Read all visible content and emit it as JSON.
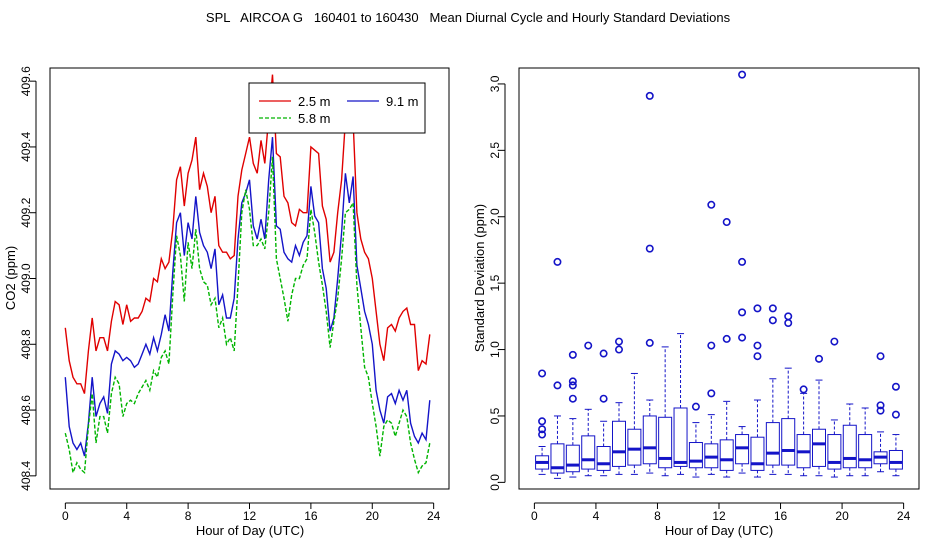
{
  "title": "SPL   AIRCOA G   160401 to 160430   Mean Diurnal Cycle and Hourly Standard Deviations",
  "chart_data": [
    {
      "type": "line",
      "xlabel": "Hour of Day (UTC)",
      "ylabel": "CO2 (ppm)",
      "xlim": [
        -1,
        25
      ],
      "ylim": [
        408.36,
        409.64
      ],
      "xticks": [
        0,
        4,
        8,
        12,
        16,
        20,
        24
      ],
      "xtick_labels": [
        "0",
        "4",
        "8",
        "12",
        "16",
        "20",
        "24"
      ],
      "yticks": [
        408.4,
        408.6,
        408.8,
        409.0,
        409.2,
        409.4,
        409.6
      ],
      "ytick_labels": [
        "408.4",
        "408.6",
        "408.8",
        "409.0",
        "409.2",
        "409.4",
        "409.6"
      ],
      "legend": {
        "position": "top-right",
        "entries": [
          "2.5 m",
          "9.1 m",
          "5.8 m"
        ]
      },
      "series": [
        {
          "name": "2.5 m",
          "color": "#e00000",
          "dash": "",
          "x": [
            0,
            0.25,
            0.5,
            0.75,
            1,
            1.25,
            1.5,
            1.75,
            2,
            2.25,
            2.5,
            2.75,
            3,
            3.25,
            3.5,
            3.75,
            4,
            4.25,
            4.5,
            4.75,
            5,
            5.25,
            5.5,
            5.75,
            6,
            6.25,
            6.5,
            6.75,
            7,
            7.25,
            7.5,
            7.75,
            8,
            8.25,
            8.5,
            8.75,
            9,
            9.25,
            9.5,
            9.75,
            10,
            10.25,
            10.5,
            10.75,
            11,
            11.25,
            11.5,
            11.75,
            12,
            12.25,
            12.5,
            12.75,
            13,
            13.25,
            13.5,
            13.75,
            14,
            14.25,
            14.5,
            14.75,
            15,
            15.25,
            15.5,
            15.75,
            16,
            16.25,
            16.5,
            16.75,
            17,
            17.25,
            17.5,
            17.75,
            18,
            18.25,
            18.5,
            18.75,
            19,
            19.25,
            19.5,
            19.75,
            20,
            20.25,
            20.5,
            20.75,
            21,
            21.25,
            21.5,
            21.75,
            22,
            22.25,
            22.5,
            22.75,
            23,
            23.25,
            23.5,
            23.75
          ],
          "y": [
            408.85,
            408.75,
            408.7,
            408.68,
            408.68,
            408.65,
            408.78,
            408.88,
            408.78,
            408.82,
            408.82,
            408.78,
            408.87,
            408.93,
            408.92,
            408.86,
            408.92,
            408.87,
            408.88,
            408.88,
            408.9,
            408.94,
            408.93,
            409.0,
            408.99,
            409.06,
            409.03,
            409.05,
            409.15,
            409.3,
            409.34,
            409.22,
            409.32,
            409.36,
            409.43,
            409.27,
            409.32,
            409.28,
            409.2,
            409.25,
            409.1,
            409.08,
            409.08,
            409.06,
            409.07,
            409.25,
            409.33,
            409.38,
            409.43,
            409.35,
            409.32,
            409.42,
            409.35,
            409.49,
            409.62,
            409.38,
            409.37,
            409.25,
            409.23,
            409.17,
            409.16,
            409.21,
            409.2,
            409.2,
            409.4,
            409.39,
            409.38,
            409.22,
            409.18,
            409.05,
            409.08,
            409.2,
            409.3,
            409.48,
            409.5,
            409.48,
            409.2,
            409.12,
            409.08,
            409.06,
            409.0,
            408.9,
            408.8,
            408.75,
            408.85,
            408.86,
            408.84,
            408.88,
            408.9,
            408.91,
            408.86,
            408.86,
            408.72,
            408.75,
            408.74,
            408.83
          ]
        },
        {
          "name": "9.1 m",
          "color": "#1414c8",
          "dash": "",
          "x": [
            0,
            0.25,
            0.5,
            0.75,
            1,
            1.25,
            1.5,
            1.75,
            2,
            2.25,
            2.5,
            2.75,
            3,
            3.25,
            3.5,
            3.75,
            4,
            4.25,
            4.5,
            4.75,
            5,
            5.25,
            5.5,
            5.75,
            6,
            6.25,
            6.5,
            6.75,
            7,
            7.25,
            7.5,
            7.75,
            8,
            8.25,
            8.5,
            8.75,
            9,
            9.25,
            9.5,
            9.75,
            10,
            10.25,
            10.5,
            10.75,
            11,
            11.25,
            11.5,
            11.75,
            12,
            12.25,
            12.5,
            12.75,
            13,
            13.25,
            13.5,
            13.75,
            14,
            14.25,
            14.5,
            14.75,
            15,
            15.25,
            15.5,
            15.75,
            16,
            16.25,
            16.5,
            16.75,
            17,
            17.25,
            17.5,
            17.75,
            18,
            18.25,
            18.5,
            18.75,
            19,
            19.25,
            19.5,
            19.75,
            20,
            20.25,
            20.5,
            20.75,
            21,
            21.25,
            21.5,
            21.75,
            22,
            22.25,
            22.5,
            22.75,
            23,
            23.25,
            23.5,
            23.75
          ],
          "y": [
            408.7,
            408.55,
            408.5,
            408.48,
            408.5,
            408.46,
            408.56,
            408.7,
            408.58,
            408.62,
            408.64,
            408.59,
            408.74,
            408.78,
            408.77,
            408.75,
            408.76,
            408.75,
            408.73,
            408.74,
            408.77,
            408.8,
            408.77,
            408.82,
            408.78,
            408.83,
            408.89,
            408.84,
            409.02,
            409.17,
            409.2,
            409.07,
            409.17,
            409.12,
            409.25,
            409.14,
            409.1,
            409.08,
            409.03,
            409.09,
            408.92,
            408.95,
            408.88,
            408.88,
            408.94,
            409.12,
            409.23,
            409.26,
            409.3,
            409.16,
            409.12,
            409.18,
            409.12,
            409.3,
            409.43,
            409.16,
            409.15,
            409.08,
            409.06,
            409.05,
            409.1,
            409.07,
            409.11,
            409.13,
            409.28,
            409.19,
            409.17,
            409.03,
            408.97,
            408.84,
            408.88,
            409.0,
            409.14,
            409.32,
            409.23,
            409.31,
            409.04,
            408.97,
            408.9,
            408.86,
            408.8,
            408.66,
            408.6,
            408.56,
            408.64,
            408.65,
            408.62,
            408.66,
            408.63,
            408.66,
            408.56,
            408.52,
            408.5,
            408.53,
            408.51,
            408.63
          ]
        },
        {
          "name": "5.8 m",
          "color": "#00b400",
          "dash": "4,2",
          "x": [
            0,
            0.25,
            0.5,
            0.75,
            1,
            1.25,
            1.5,
            1.75,
            2,
            2.25,
            2.5,
            2.75,
            3,
            3.25,
            3.5,
            3.75,
            4,
            4.25,
            4.5,
            4.75,
            5,
            5.25,
            5.5,
            5.75,
            6,
            6.25,
            6.5,
            6.75,
            7,
            7.25,
            7.5,
            7.75,
            8,
            8.25,
            8.5,
            8.75,
            9,
            9.25,
            9.5,
            9.75,
            10,
            10.25,
            10.5,
            10.75,
            11,
            11.25,
            11.5,
            11.75,
            12,
            12.25,
            12.5,
            12.75,
            13,
            13.25,
            13.5,
            13.75,
            14,
            14.25,
            14.5,
            14.75,
            15,
            15.25,
            15.5,
            15.75,
            16,
            16.25,
            16.5,
            16.75,
            17,
            17.25,
            17.5,
            17.75,
            18,
            18.25,
            18.5,
            18.75,
            19,
            19.25,
            19.5,
            19.75,
            20,
            20.25,
            20.5,
            20.75,
            21,
            21.25,
            21.5,
            21.75,
            22,
            22.25,
            22.5,
            22.75,
            23,
            23.25,
            23.5,
            23.75
          ],
          "y": [
            408.53,
            408.48,
            408.41,
            408.44,
            408.42,
            408.41,
            408.55,
            408.65,
            408.5,
            408.58,
            408.58,
            408.53,
            408.65,
            408.7,
            408.68,
            408.58,
            408.62,
            408.63,
            408.62,
            408.65,
            408.67,
            408.69,
            408.66,
            408.72,
            408.7,
            408.76,
            408.78,
            408.74,
            408.95,
            409.13,
            409.07,
            408.93,
            409.11,
            409.03,
            409.15,
            409.03,
            408.99,
            408.98,
            408.92,
            408.94,
            408.85,
            408.88,
            408.8,
            408.82,
            408.78,
            408.98,
            409.2,
            409.27,
            409.21,
            409.1,
            409.1,
            409.12,
            409.09,
            409.2,
            409.37,
            409.06,
            409.0,
            408.94,
            408.87,
            408.95,
            409.0,
            409.0,
            409.04,
            409.06,
            409.21,
            409.14,
            409.05,
            408.98,
            408.9,
            408.79,
            408.87,
            408.94,
            409.06,
            409.2,
            409.21,
            409.23,
            408.98,
            408.85,
            408.73,
            408.7,
            408.62,
            408.55,
            408.46,
            408.55,
            408.57,
            408.56,
            408.52,
            408.56,
            408.6,
            408.58,
            408.5,
            408.45,
            408.41,
            408.43,
            408.44,
            408.5
          ]
        }
      ]
    },
    {
      "type": "box",
      "xlabel": "Hour of Day (UTC)",
      "ylabel": "Standard Deviation (ppm)",
      "xlim": [
        -1,
        25
      ],
      "ylim": [
        -0.05,
        3.12
      ],
      "xticks": [
        0,
        4,
        8,
        12,
        16,
        20,
        24
      ],
      "xtick_labels": [
        "0",
        "4",
        "8",
        "12",
        "16",
        "20",
        "24"
      ],
      "yticks": [
        0.0,
        0.5,
        1.0,
        1.5,
        2.0,
        2.5,
        3.0
      ],
      "ytick_labels": [
        "0.0",
        "0.5",
        "1.0",
        "1.5",
        "2.0",
        "2.5",
        "3.0"
      ],
      "color": "#1414c8",
      "boxes": [
        {
          "x": 0.5,
          "q1": 0.1,
          "median": 0.15,
          "q3": 0.2,
          "lo": 0.06,
          "hi": 0.27,
          "outliers": [
            0.36,
            0.4,
            0.46,
            0.82
          ]
        },
        {
          "x": 1.5,
          "q1": 0.07,
          "median": 0.11,
          "q3": 0.29,
          "lo": 0.03,
          "hi": 0.5,
          "outliers": [
            0.73,
            1.66
          ]
        },
        {
          "x": 2.5,
          "q1": 0.08,
          "median": 0.13,
          "q3": 0.28,
          "lo": 0.04,
          "hi": 0.48,
          "outliers": [
            0.63,
            0.73,
            0.76,
            0.96
          ]
        },
        {
          "x": 3.5,
          "q1": 0.1,
          "median": 0.17,
          "q3": 0.35,
          "lo": 0.05,
          "hi": 0.55,
          "outliers": [
            1.03
          ]
        },
        {
          "x": 4.5,
          "q1": 0.09,
          "median": 0.14,
          "q3": 0.27,
          "lo": 0.05,
          "hi": 0.46,
          "outliers": [
            0.63,
            0.97
          ]
        },
        {
          "x": 5.5,
          "q1": 0.12,
          "median": 0.23,
          "q3": 0.46,
          "lo": 0.06,
          "hi": 0.6,
          "outliers": [
            1.0,
            1.06
          ]
        },
        {
          "x": 6.5,
          "q1": 0.13,
          "median": 0.25,
          "q3": 0.4,
          "lo": 0.06,
          "hi": 0.82,
          "outliers": []
        },
        {
          "x": 7.5,
          "q1": 0.14,
          "median": 0.26,
          "q3": 0.5,
          "lo": 0.07,
          "hi": 0.62,
          "outliers": [
            1.05,
            1.76,
            2.91
          ]
        },
        {
          "x": 8.5,
          "q1": 0.11,
          "median": 0.18,
          "q3": 0.49,
          "lo": 0.05,
          "hi": 1.02,
          "outliers": []
        },
        {
          "x": 9.5,
          "q1": 0.12,
          "median": 0.15,
          "q3": 0.56,
          "lo": 0.06,
          "hi": 1.12,
          "outliers": []
        },
        {
          "x": 10.5,
          "q1": 0.11,
          "median": 0.16,
          "q3": 0.3,
          "lo": 0.04,
          "hi": 0.45,
          "outliers": [
            0.57
          ]
        },
        {
          "x": 11.5,
          "q1": 0.11,
          "median": 0.19,
          "q3": 0.29,
          "lo": 0.06,
          "hi": 0.51,
          "outliers": [
            0.67,
            1.03,
            2.09
          ]
        },
        {
          "x": 12.5,
          "q1": 0.09,
          "median": 0.17,
          "q3": 0.32,
          "lo": 0.04,
          "hi": 0.61,
          "outliers": [
            1.08,
            1.96
          ]
        },
        {
          "x": 13.5,
          "q1": 0.14,
          "median": 0.26,
          "q3": 0.36,
          "lo": 0.07,
          "hi": 0.42,
          "outliers": [
            1.09,
            1.28,
            1.66,
            3.07
          ]
        },
        {
          "x": 14.5,
          "q1": 0.09,
          "median": 0.14,
          "q3": 0.34,
          "lo": 0.04,
          "hi": 0.62,
          "outliers": [
            0.95,
            1.03,
            1.31
          ]
        },
        {
          "x": 15.5,
          "q1": 0.13,
          "median": 0.22,
          "q3": 0.45,
          "lo": 0.06,
          "hi": 0.78,
          "outliers": [
            1.22,
            1.31
          ]
        },
        {
          "x": 16.5,
          "q1": 0.13,
          "median": 0.24,
          "q3": 0.48,
          "lo": 0.06,
          "hi": 0.86,
          "outliers": [
            1.2,
            1.25
          ]
        },
        {
          "x": 17.5,
          "q1": 0.11,
          "median": 0.23,
          "q3": 0.36,
          "lo": 0.05,
          "hi": 0.67,
          "outliers": [
            0.7
          ]
        },
        {
          "x": 18.5,
          "q1": 0.12,
          "median": 0.29,
          "q3": 0.4,
          "lo": 0.05,
          "hi": 0.77,
          "outliers": [
            0.93
          ]
        },
        {
          "x": 19.5,
          "q1": 0.1,
          "median": 0.15,
          "q3": 0.36,
          "lo": 0.04,
          "hi": 0.47,
          "outliers": [
            1.06
          ]
        },
        {
          "x": 20.5,
          "q1": 0.11,
          "median": 0.18,
          "q3": 0.43,
          "lo": 0.05,
          "hi": 0.59,
          "outliers": []
        },
        {
          "x": 21.5,
          "q1": 0.11,
          "median": 0.17,
          "q3": 0.36,
          "lo": 0.05,
          "hi": 0.56,
          "outliers": []
        },
        {
          "x": 22.5,
          "q1": 0.14,
          "median": 0.19,
          "q3": 0.23,
          "lo": 0.08,
          "hi": 0.38,
          "outliers": [
            0.54,
            0.58,
            0.95
          ]
        },
        {
          "x": 23.5,
          "q1": 0.1,
          "median": 0.15,
          "q3": 0.24,
          "lo": 0.05,
          "hi": 0.36,
          "outliers": [
            0.51,
            0.72
          ]
        }
      ]
    }
  ]
}
